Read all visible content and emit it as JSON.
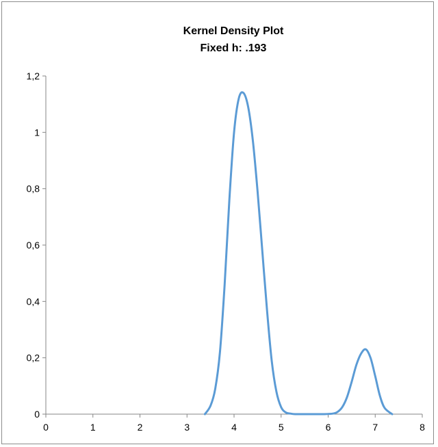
{
  "chart_data": {
    "type": "line",
    "title": "Kernel Density Plot",
    "subtitle": "Fixed h: .193",
    "xlabel": "",
    "ylabel": "",
    "xlim": [
      0,
      8
    ],
    "ylim": [
      0,
      1.2
    ],
    "x_ticks": [
      "0",
      "1",
      "2",
      "3",
      "4",
      "5",
      "6",
      "7",
      "8"
    ],
    "y_ticks": [
      "0",
      "0,2",
      "0,4",
      "0,6",
      "0,8",
      "1",
      "1,2"
    ],
    "grid": false,
    "legend": "none",
    "line_color": "#5b9bd5",
    "series": [
      {
        "x": [
          3.38,
          3.5,
          3.6,
          3.7,
          3.8,
          3.9,
          4.0,
          4.1,
          4.2,
          4.3,
          4.4,
          4.5,
          4.6,
          4.7,
          4.8,
          4.9,
          5.0,
          5.1,
          5.2,
          5.3,
          5.5,
          5.7,
          5.9,
          6.1,
          6.2,
          6.3,
          6.4,
          6.5,
          6.6,
          6.7,
          6.8,
          6.9,
          7.0,
          7.1,
          7.2,
          7.36
        ],
        "y": [
          0.0,
          0.03,
          0.09,
          0.22,
          0.46,
          0.76,
          1.0,
          1.12,
          1.14,
          1.09,
          0.97,
          0.79,
          0.58,
          0.37,
          0.19,
          0.08,
          0.025,
          0.006,
          0.002,
          0.0,
          0.0,
          0.0,
          0.0,
          0.002,
          0.008,
          0.025,
          0.06,
          0.115,
          0.175,
          0.215,
          0.23,
          0.2,
          0.135,
          0.065,
          0.022,
          0.0
        ]
      }
    ]
  }
}
